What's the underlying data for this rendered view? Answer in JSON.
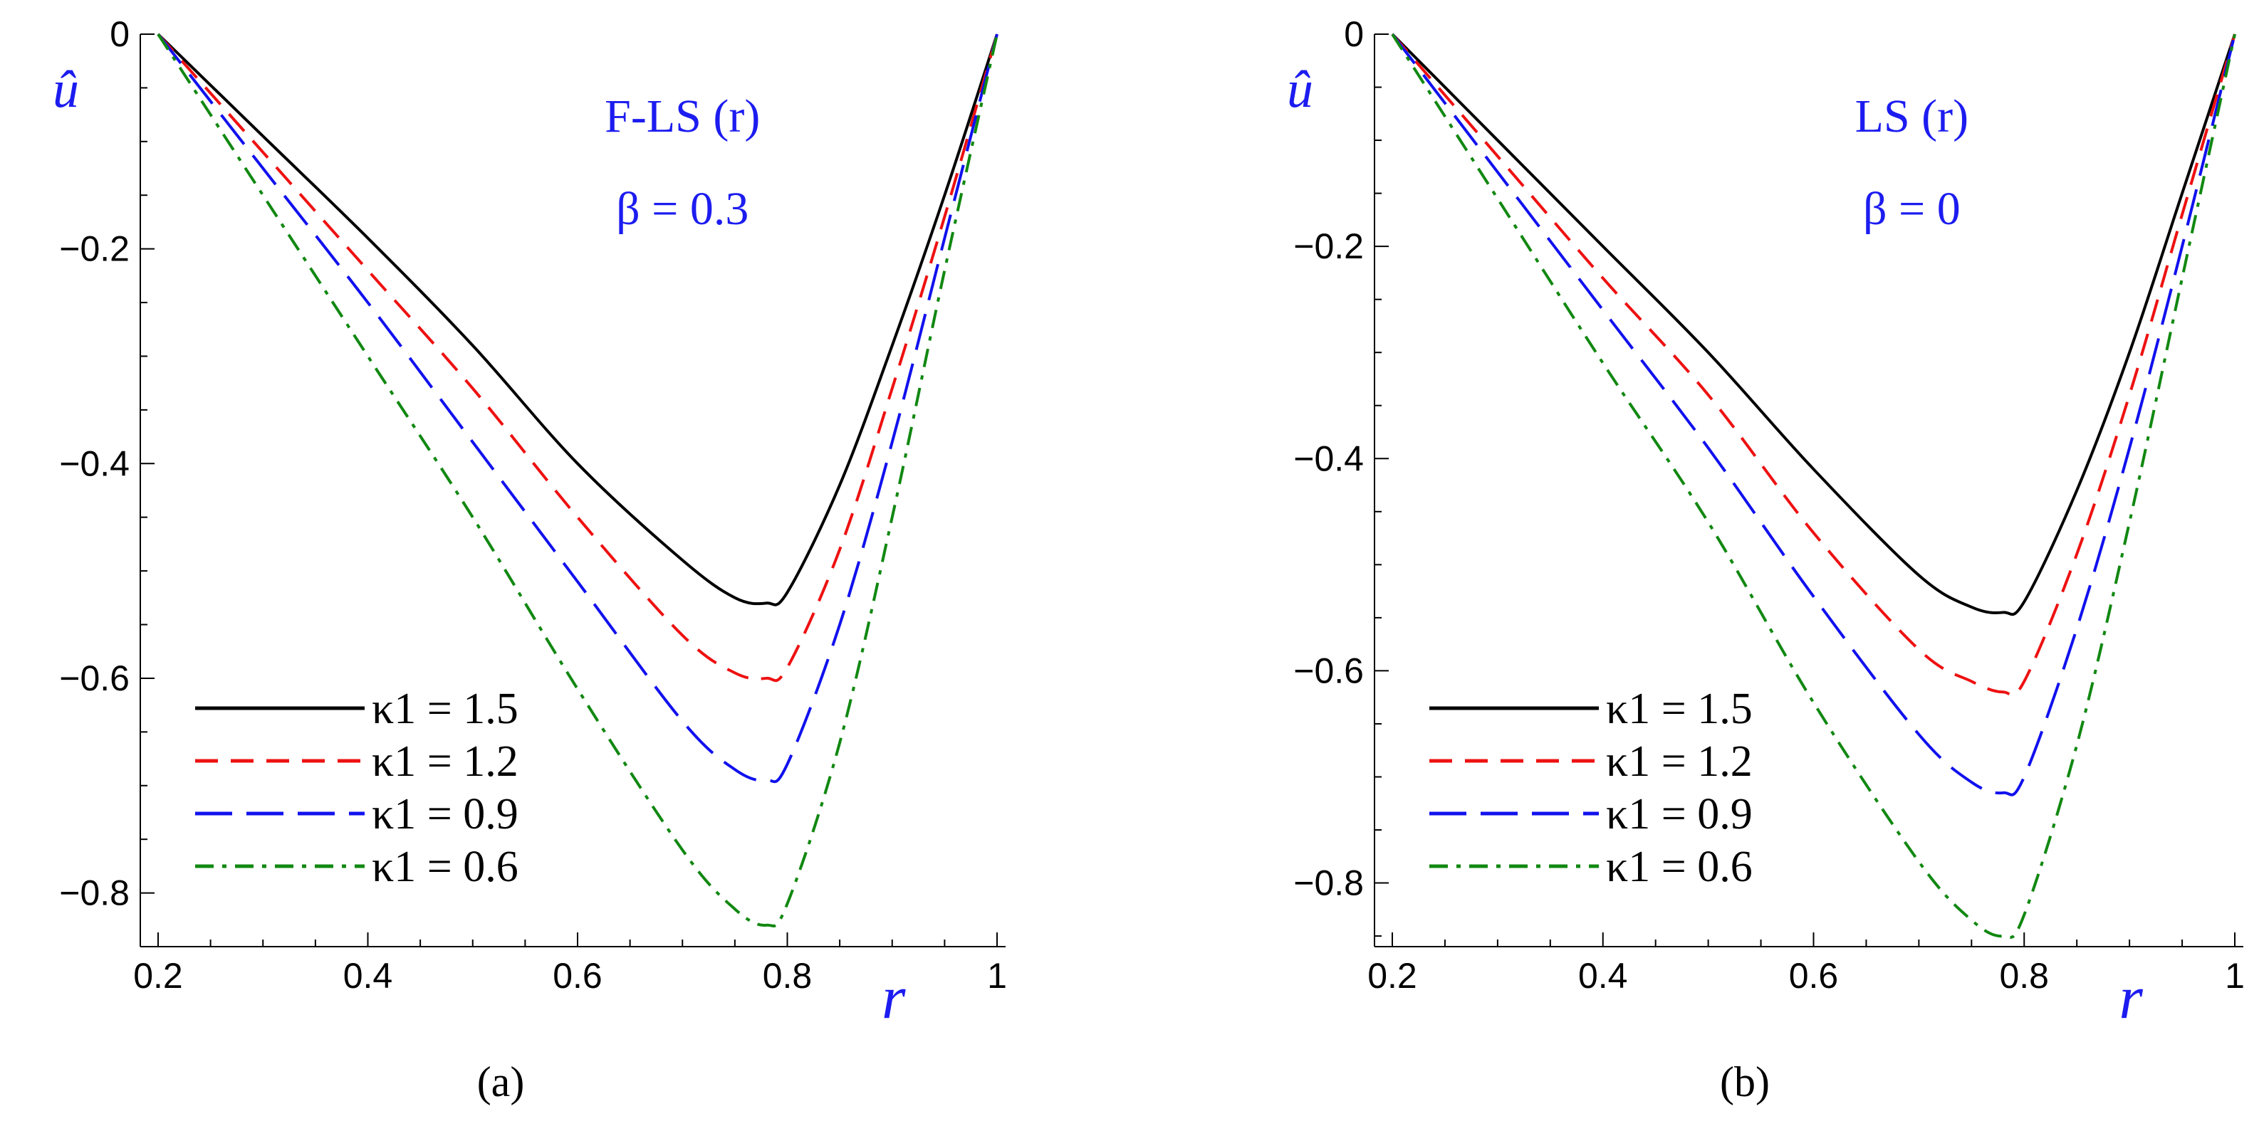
{
  "chart_data": [
    {
      "type": "line",
      "panel_label": "a",
      "annotation": [
        "F-LS (r)",
        "β = 0.3"
      ],
      "xlabel": "r",
      "ylabel": "û",
      "xlim": [
        0.2,
        1.0
      ],
      "ylim": [
        -0.85,
        0.0
      ],
      "x_ticks": [
        "0.2",
        "0.4",
        "0.6",
        "0.8",
        "1"
      ],
      "y_ticks": [
        "0",
        "−0.2",
        "−0.4",
        "−0.6",
        "−0.8"
      ],
      "legend_position": "bottom-left",
      "grid": false,
      "x": [
        0.2,
        0.3,
        0.4,
        0.5,
        0.6,
        0.7,
        0.75,
        0.78,
        0.8,
        0.85,
        0.9,
        0.95,
        1.0
      ],
      "series": [
        {
          "name": "κ1 = 1.5",
          "color": "#000000",
          "style": "solid",
          "values": [
            0.0,
            -0.095,
            -0.19,
            -0.29,
            -0.4,
            -0.49,
            -0.525,
            -0.53,
            -0.52,
            -0.42,
            -0.29,
            -0.15,
            0.0
          ]
        },
        {
          "name": "κ1 = 1.2",
          "color": "#ee1111",
          "style": "dashed",
          "values": [
            0.0,
            -0.11,
            -0.22,
            -0.33,
            -0.45,
            -0.56,
            -0.595,
            -0.6,
            -0.59,
            -0.48,
            -0.33,
            -0.17,
            0.0
          ]
        },
        {
          "name": "κ1 = 0.9",
          "color": "#1111ee",
          "style": "longdash",
          "values": [
            0.0,
            -0.125,
            -0.25,
            -0.38,
            -0.51,
            -0.64,
            -0.685,
            -0.695,
            -0.68,
            -0.55,
            -0.38,
            -0.19,
            0.0
          ]
        },
        {
          "name": "κ1 = 0.6",
          "color": "#118811",
          "style": "dashdot",
          "values": [
            0.0,
            -0.15,
            -0.3,
            -0.45,
            -0.61,
            -0.76,
            -0.815,
            -0.83,
            -0.81,
            -0.66,
            -0.45,
            -0.22,
            0.0
          ]
        }
      ]
    },
    {
      "type": "line",
      "panel_label": "b",
      "annotation": [
        "LS (r)",
        "β = 0"
      ],
      "xlabel": "r",
      "ylabel": "û",
      "xlim": [
        0.2,
        1.0
      ],
      "ylim": [
        -0.86,
        0.0
      ],
      "x_ticks": [
        "0.2",
        "0.4",
        "0.6",
        "0.8",
        "1"
      ],
      "y_ticks": [
        "0",
        "−0.2",
        "−0.4",
        "−0.6",
        "−0.8"
      ],
      "legend_position": "bottom-left",
      "grid": false,
      "x": [
        0.2,
        0.3,
        0.4,
        0.5,
        0.6,
        0.7,
        0.75,
        0.78,
        0.8,
        0.85,
        0.9,
        0.95,
        1.0
      ],
      "series": [
        {
          "name": "κ1 = 1.5",
          "color": "#000000",
          "style": "solid",
          "values": [
            0.0,
            -0.1,
            -0.2,
            -0.3,
            -0.41,
            -0.51,
            -0.54,
            -0.545,
            -0.535,
            -0.43,
            -0.3,
            -0.15,
            0.0
          ]
        },
        {
          "name": "κ1 = 1.2",
          "color": "#ee1111",
          "style": "dashed",
          "values": [
            0.0,
            -0.115,
            -0.23,
            -0.34,
            -0.47,
            -0.58,
            -0.61,
            -0.62,
            -0.61,
            -0.49,
            -0.34,
            -0.17,
            0.0
          ]
        },
        {
          "name": "κ1 = 0.9",
          "color": "#1111ee",
          "style": "longdash",
          "values": [
            0.0,
            -0.13,
            -0.26,
            -0.39,
            -0.53,
            -0.66,
            -0.705,
            -0.715,
            -0.7,
            -0.56,
            -0.39,
            -0.2,
            0.0
          ]
        },
        {
          "name": "κ1 = 0.6",
          "color": "#118811",
          "style": "dashdot",
          "values": [
            0.0,
            -0.155,
            -0.31,
            -0.46,
            -0.63,
            -0.78,
            -0.835,
            -0.85,
            -0.83,
            -0.67,
            -0.46,
            -0.23,
            0.0
          ]
        }
      ]
    }
  ]
}
